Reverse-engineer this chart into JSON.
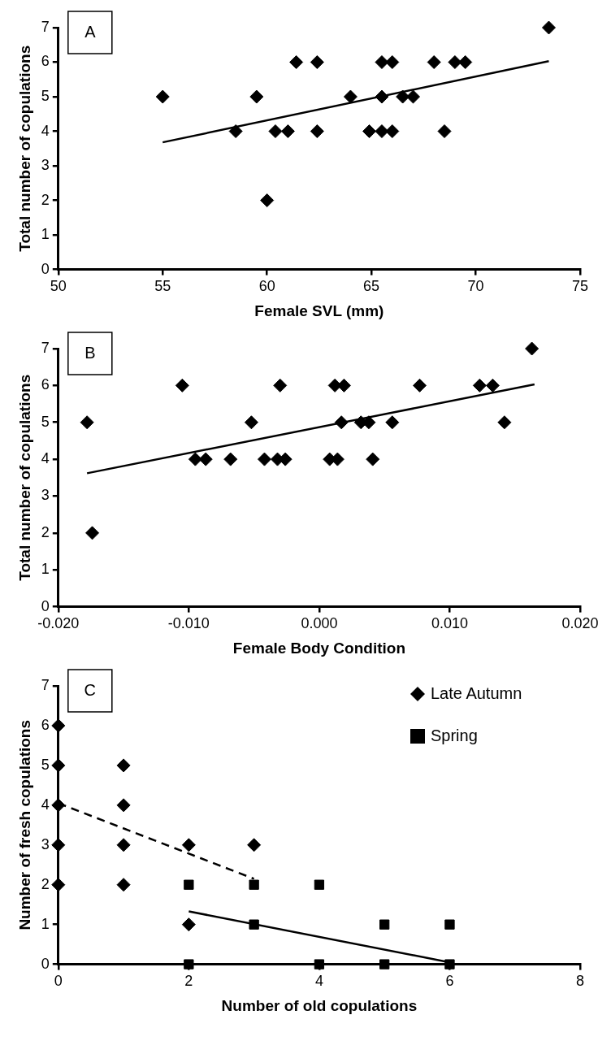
{
  "chart_data": [
    {
      "type": "scatter",
      "annotations": [
        "A"
      ],
      "xlabel": "Female SVL (mm)",
      "ylabel": "Total number of copulations",
      "xlim": [
        50,
        75
      ],
      "xticks": [
        50,
        55,
        60,
        65,
        70,
        75
      ],
      "ylim": [
        0,
        7
      ],
      "yticks": [
        0,
        1,
        2,
        3,
        4,
        5,
        6,
        7
      ],
      "grid": false,
      "legend": false,
      "marker": "diamond",
      "series": [
        {
          "color": "#000000",
          "x": [
            55.0,
            58.5,
            59.5,
            60.0,
            60.4,
            61.0,
            61.4,
            62.4,
            62.4,
            64.0,
            64.9,
            65.5,
            66.0,
            65.5,
            66.0,
            65.5,
            66.5,
            67.0,
            68.0,
            68.5,
            69.0,
            69.5,
            73.5
          ],
          "values": [
            5,
            4,
            5,
            2,
            4,
            4,
            6,
            6,
            4,
            5,
            4,
            4,
            4,
            6,
            6,
            5,
            5,
            5,
            6,
            4,
            6,
            6,
            7
          ]
        },
        {
          "type": "line",
          "color": "#000000",
          "marker": "none",
          "line_style": "solid",
          "x": [
            55.0,
            73.5
          ],
          "values": [
            3.68,
            6.03
          ]
        }
      ]
    },
    {
      "type": "scatter",
      "annotations": [
        "B"
      ],
      "xlabel": "Female Body Condition",
      "ylabel": "Total number of copulations",
      "xlim": [
        -0.02,
        0.02
      ],
      "xticks": [
        {
          "value": -0.02,
          "label": "-0.020"
        },
        {
          "value": -0.01,
          "label": "-0.010"
        },
        {
          "value": 0,
          "label": "0.000"
        },
        {
          "value": 0.01,
          "label": "0.010"
        },
        {
          "value": 0.02,
          "label": "0.020"
        }
      ],
      "ylim": [
        0,
        7
      ],
      "yticks": [
        0,
        1,
        2,
        3,
        4,
        5,
        6,
        7
      ],
      "grid": false,
      "legend": false,
      "marker": "diamond",
      "series": [
        {
          "color": "#000000",
          "x": [
            -0.0178,
            -0.0174,
            -0.0105,
            -0.0095,
            -0.0087,
            -0.0068,
            -0.0052,
            -0.0042,
            -0.003,
            -0.0032,
            -0.0026,
            0.0008,
            0.0014,
            0.0012,
            0.0019,
            0.0017,
            0.0032,
            0.0038,
            0.0041,
            0.0056,
            0.0077,
            0.0123,
            0.0133,
            0.0142,
            0.0163
          ],
          "values": [
            5,
            2,
            6,
            4,
            4,
            4,
            5,
            4,
            6,
            4,
            4,
            4,
            4,
            6,
            6,
            5,
            5,
            5,
            4,
            5,
            6,
            6,
            6,
            5,
            7
          ]
        },
        {
          "type": "line",
          "color": "#000000",
          "marker": "none",
          "line_style": "solid",
          "x": [
            -0.0178,
            0.0165
          ],
          "values": [
            3.62,
            6.03
          ]
        }
      ]
    },
    {
      "type": "scatter",
      "annotations": [
        "C"
      ],
      "xlabel": "Number of old copulations",
      "ylabel": "Number of fresh copulations",
      "xlim": [
        0,
        8
      ],
      "xticks": [
        0,
        2,
        4,
        6,
        8
      ],
      "ylim": [
        0,
        7
      ],
      "yticks": [
        0,
        1,
        2,
        3,
        4,
        5,
        6,
        7
      ],
      "grid": false,
      "legend": "top right",
      "marker": "diamond",
      "series": [
        {
          "name": "Late Autumn",
          "color": "#000000",
          "x": [
            0,
            0,
            0,
            0,
            0,
            1,
            1,
            1,
            1,
            2,
            2,
            3
          ],
          "values": [
            6,
            5,
            4,
            3,
            2,
            5,
            4,
            3,
            2,
            3,
            1,
            3
          ]
        },
        {
          "name": "Spring",
          "color": "#000000",
          "marker": "square",
          "x": [
            2,
            3,
            4,
            3,
            5,
            6,
            2,
            4,
            5,
            6
          ],
          "values": [
            2,
            2,
            2,
            1,
            1,
            1,
            0,
            0,
            0,
            0
          ]
        },
        {
          "type": "line",
          "color": "#000000",
          "marker": "none",
          "line_style": "dashed",
          "x": [
            0,
            3
          ],
          "values": [
            4.05,
            2.15
          ]
        },
        {
          "type": "line",
          "color": "#000000",
          "marker": "none",
          "line_style": "solid",
          "x": [
            2,
            6
          ],
          "values": [
            1.33,
            0.05
          ]
        }
      ]
    }
  ]
}
